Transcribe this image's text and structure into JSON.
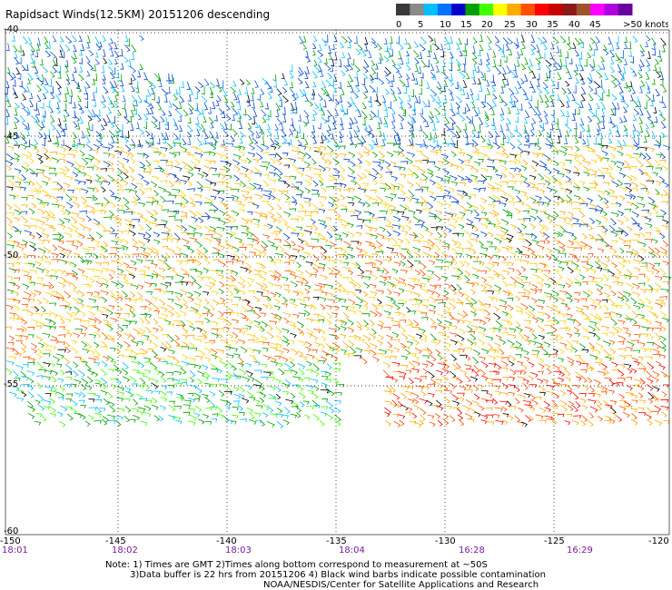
{
  "title": "Rapidsact Winds(12.5KM) 20151206 descending",
  "legend": {
    "labels": [
      "0",
      "5",
      "10",
      "15",
      "20",
      "25",
      "30",
      "35",
      "40",
      "45",
      ">50 knots"
    ],
    "colors": [
      "#3a3a3a",
      "#8a8a8a",
      "#00bfff",
      "#0070ff",
      "#0000cd",
      "#00a000",
      "#40ff00",
      "#ffff00",
      "#ffaa00",
      "#ff5000",
      "#ff0000",
      "#c80000",
      "#8b1a1a",
      "#a0522d",
      "#ff00ff",
      "#b000e0",
      "#6a00a0"
    ]
  },
  "axes": {
    "lat_labels": [
      "-40",
      "-45",
      "-50",
      "-55",
      "-60"
    ],
    "lon_labels": [
      "-150",
      "-145",
      "-140",
      "-135",
      "-130",
      "-125",
      "-120"
    ],
    "times": [
      "18:01",
      "18:02",
      "18:03",
      "18:04",
      "16:28",
      "16:29"
    ]
  },
  "notes": {
    "line1": "Note: 1) Times are GMT 2)Times along bottom correspond to measurement at ~50S",
    "line2": "3)Data buffer is 22 hrs from 20151206 4) Black wind barbs indicate possible contamination",
    "line3": "NOAA/NESDIS/Center for Satellite Applications and Research"
  },
  "wind_regions": [
    {
      "band": "north",
      "lat": [
        -40,
        -44.5
      ],
      "lon": [
        -150,
        -120
      ],
      "dominant_speed_knots": 10,
      "colors": [
        "#1060e0",
        "#0040c0",
        "#00bfff",
        "#00a000"
      ]
    },
    {
      "band": "mid-north",
      "lat": [
        -44.5,
        -48
      ],
      "lon": [
        -150,
        -120
      ],
      "dominant_speed_knots": 20,
      "colors": [
        "#ffd000",
        "#ffaa00",
        "#0040c0",
        "#00a000"
      ]
    },
    {
      "band": "center",
      "lat": [
        -48,
        -53
      ],
      "lon": [
        -150,
        -120
      ],
      "dominant_speed_knots": 25,
      "colors": [
        "#ffd000",
        "#ffaa00",
        "#ff5000",
        "#00a000"
      ]
    },
    {
      "band": "south",
      "lat": [
        -53,
        -55.5
      ],
      "lon": [
        -150,
        -135
      ],
      "dominant_speed_knots": 12,
      "colors": [
        "#00bfff",
        "#00a000",
        "#40ff00"
      ]
    },
    {
      "band": "south-east",
      "lat": [
        -52,
        -56
      ],
      "lon": [
        -133,
        -120
      ],
      "dominant_speed_knots": 30,
      "colors": [
        "#ff5000",
        "#ffaa00",
        "#ff0000"
      ]
    }
  ]
}
